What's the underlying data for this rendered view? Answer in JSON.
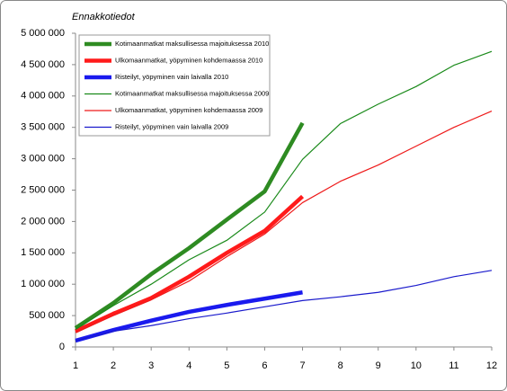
{
  "chart_data": {
    "type": "line",
    "title": "Ennakkotiedot",
    "x": [
      1,
      2,
      3,
      4,
      5,
      6,
      7,
      8,
      9,
      10,
      11,
      12
    ],
    "xlim": [
      1,
      12
    ],
    "xticks": [
      1,
      2,
      3,
      4,
      5,
      6,
      7,
      8,
      9,
      10,
      11,
      12
    ],
    "ylim": [
      0,
      5000000
    ],
    "yticks": [
      {
        "value": 0,
        "label": "0"
      },
      {
        "value": 500000,
        "label": "500 000"
      },
      {
        "value": 1000000,
        "label": "1 000 000"
      },
      {
        "value": 1500000,
        "label": "1 500 000"
      },
      {
        "value": 2000000,
        "label": "2 000 000"
      },
      {
        "value": 2500000,
        "label": "2 500 000"
      },
      {
        "value": 3000000,
        "label": "3 000 000"
      },
      {
        "value": 3500000,
        "label": "3 500 000"
      },
      {
        "value": 4000000,
        "label": "4 000 000"
      },
      {
        "value": 4500000,
        "label": "4 500 000"
      },
      {
        "value": 5000000,
        "label": "5 000 000"
      }
    ],
    "grid": false,
    "legend": "upper left",
    "series": [
      {
        "name": "Kotimaanmatkat maksullisessa majoituksessa 2010",
        "color": "#2e8b22",
        "line_width": 4.5,
        "values": [
          300000,
          700000,
          1160000,
          1575000,
          2030000,
          2480000,
          3570000,
          null,
          null,
          null,
          null,
          null
        ]
      },
      {
        "name": "Ulkomaanmatkat, yöpyminen kohdemaassa 2010",
        "color": "#ff1a1a",
        "line_width": 4.5,
        "values": [
          250000,
          530000,
          780000,
          1120000,
          1500000,
          1850000,
          2400000,
          null,
          null,
          null,
          null,
          null
        ]
      },
      {
        "name": "Risteilyt, yöpyminen vain laivalla 2010",
        "color": "#1a1aee",
        "line_width": 4.5,
        "values": [
          100000,
          270000,
          420000,
          560000,
          670000,
          770000,
          870000,
          null,
          null,
          null,
          null,
          null
        ]
      },
      {
        "name": "Kotimaanmatkat maksullisessa majoituksessa 2009",
        "color": "#1a8a1a",
        "line_width": 1.2,
        "values": [
          280000,
          660000,
          1000000,
          1390000,
          1700000,
          2150000,
          2990000,
          3560000,
          3870000,
          4150000,
          4490000,
          4710000
        ]
      },
      {
        "name": "Ulkomaanmatkat, yöpyminen kohdemaassa 2009",
        "color": "#ee1a1a",
        "line_width": 1.2,
        "values": [
          230000,
          500000,
          750000,
          1050000,
          1440000,
          1800000,
          2300000,
          2640000,
          2900000,
          3200000,
          3500000,
          3760000
        ]
      },
      {
        "name": "Risteilyt, yöpyminen vain laivalla 2009",
        "color": "#1a1acc",
        "line_width": 1.2,
        "values": [
          100000,
          250000,
          340000,
          450000,
          540000,
          640000,
          740000,
          800000,
          870000,
          980000,
          1120000,
          1220000
        ]
      }
    ]
  }
}
